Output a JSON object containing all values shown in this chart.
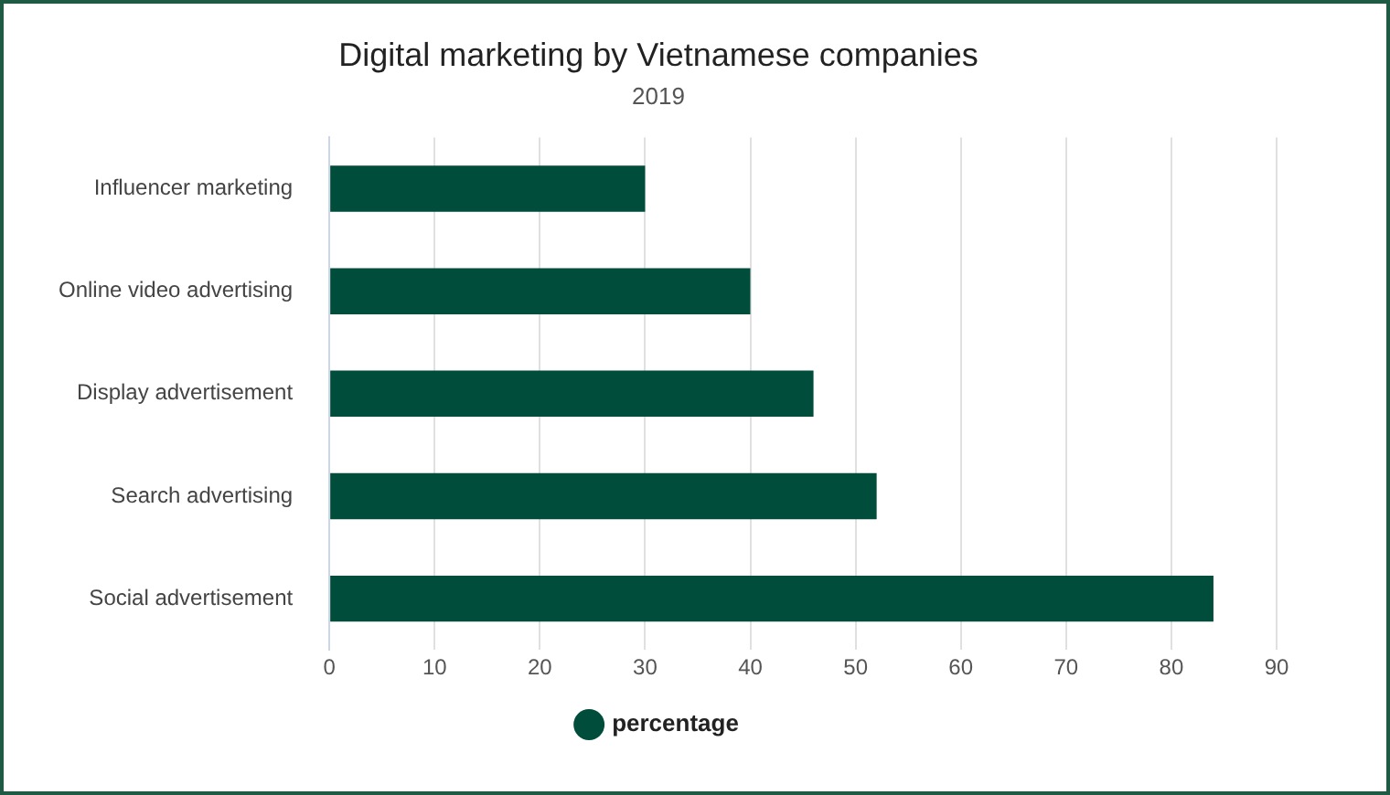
{
  "chart_data": {
    "type": "bar",
    "orientation": "horizontal",
    "title": "Digital marketing by Vietnamese companies",
    "subtitle": "2019",
    "categories": [
      "Influencer marketing",
      "Online video advertising",
      "Display advertisement",
      "Search advertising",
      "Social advertisement"
    ],
    "series": [
      {
        "name": "percentage",
        "color": "#004d3b",
        "values": [
          30,
          40,
          46,
          52,
          84
        ]
      }
    ],
    "xlim": [
      0,
      90
    ],
    "xticks": [
      0,
      10,
      20,
      30,
      40,
      50,
      60,
      70,
      80,
      90
    ],
    "grid": "x",
    "legend": "bottom"
  }
}
